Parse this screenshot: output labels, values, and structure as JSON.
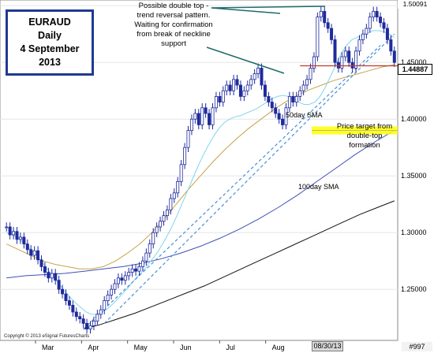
{
  "header": {
    "title_lines": [
      "EURAUD",
      "Daily",
      "4 September",
      "2013"
    ]
  },
  "annotations": {
    "double_top": [
      "Possible double top -",
      "trend reversal pattern.",
      "Waiting for confirmation",
      "from  break of neckline",
      "support"
    ],
    "sma50": "50day SMA",
    "sma100": "100day SMA",
    "target": [
      "Price target from",
      "double-top",
      "formation"
    ]
  },
  "price_tags": {
    "current": "1.44887",
    "top_partial": "1.50091"
  },
  "footer": {
    "copyright": "Copyright © 2013 eSignal FuturesCharts",
    "date_box": "08/30/13",
    "counter": "#997"
  },
  "colors": {
    "up_candle": "#ffffff",
    "down_candle": "#1e2a9c",
    "sma_short": "#7fd6ee",
    "sma50": "#c8a24a",
    "sma100": "#3e4fb5",
    "sma200": "#111111",
    "neckline": "#c0392b",
    "trendline": "#4a90d9",
    "target_highlight": "#ffff00",
    "arrow": "#1f6b6b"
  },
  "chart_data": {
    "type": "candlestick",
    "symbol": "EURAUD",
    "timeframe": "Daily",
    "ylim": [
      1.205,
      1.505
    ],
    "y_ticks": [
      1.25,
      1.3,
      1.35,
      1.4,
      1.45,
      1.5
    ],
    "y_tick_labels": [
      "1.25000",
      "1.30000",
      "1.35000",
      "1.40000",
      "1.45000",
      "1.50000"
    ],
    "x_labels": [
      "Mar",
      "Apr",
      "May",
      "Jun",
      "Jul",
      "Aug"
    ],
    "close_series": [
      1.305,
      1.298,
      1.301,
      1.294,
      1.296,
      1.29,
      1.285,
      1.28,
      1.284,
      1.276,
      1.27,
      1.265,
      1.26,
      1.264,
      1.258,
      1.25,
      1.246,
      1.24,
      1.236,
      1.23,
      1.226,
      1.224,
      1.22,
      1.215,
      1.218,
      1.222,
      1.228,
      1.232,
      1.24,
      1.245,
      1.25,
      1.255,
      1.26,
      1.258,
      1.262,
      1.265,
      1.268,
      1.266,
      1.27,
      1.275,
      1.282,
      1.29,
      1.3,
      1.305,
      1.31,
      1.315,
      1.32,
      1.33,
      1.335,
      1.345,
      1.36,
      1.375,
      1.39,
      1.4,
      1.405,
      1.395,
      1.41,
      1.405,
      1.395,
      1.41,
      1.42,
      1.415,
      1.425,
      1.43,
      1.425,
      1.435,
      1.43,
      1.42,
      1.425,
      1.43,
      1.435,
      1.44,
      1.445,
      1.43,
      1.42,
      1.415,
      1.41,
      1.405,
      1.4,
      1.395,
      1.41,
      1.42,
      1.415,
      1.42,
      1.425,
      1.43,
      1.435,
      1.445,
      1.455,
      1.49,
      1.495,
      1.485,
      1.48,
      1.47,
      1.45,
      1.445,
      1.455,
      1.46,
      1.45,
      1.445,
      1.46,
      1.47,
      1.475,
      1.48,
      1.49,
      1.495,
      1.49,
      1.485,
      1.48,
      1.47,
      1.46,
      1.45
    ],
    "sma_short": [
      1.3,
      1.298,
      1.296,
      1.292,
      1.288,
      1.283,
      1.278,
      1.272,
      1.266,
      1.26,
      1.254,
      1.248,
      1.243,
      1.238,
      1.234,
      1.23,
      1.228,
      1.228,
      1.23,
      1.233,
      1.237,
      1.242,
      1.247,
      1.252,
      1.258,
      1.263,
      1.268,
      1.274,
      1.28,
      1.287,
      1.295,
      1.304,
      1.314,
      1.325,
      1.336,
      1.347,
      1.358,
      1.368,
      1.377,
      1.385,
      1.392,
      1.397,
      1.4,
      1.402,
      1.403,
      1.405,
      1.407,
      1.409,
      1.412,
      1.415,
      1.418,
      1.42,
      1.421,
      1.42,
      1.418,
      1.415,
      1.413,
      1.413,
      1.415,
      1.42,
      1.428,
      1.438,
      1.448,
      1.458,
      1.465,
      1.47,
      1.472,
      1.474,
      1.476,
      1.478,
      1.478,
      1.477,
      1.475,
      1.472
    ],
    "sma50": [
      1.29,
      1.285,
      1.28,
      1.275,
      1.272,
      1.27,
      1.268,
      1.268,
      1.27,
      1.275,
      1.282,
      1.29,
      1.3,
      1.312,
      1.325,
      1.338,
      1.35,
      1.362,
      1.373,
      1.383,
      1.392,
      1.4,
      1.408,
      1.415,
      1.421,
      1.426,
      1.43,
      1.434,
      1.437,
      1.44,
      1.443,
      1.446,
      1.448
    ],
    "sma100": [
      1.26,
      1.262,
      1.263,
      1.264,
      1.266,
      1.268,
      1.27,
      1.273,
      1.277,
      1.282,
      1.288,
      1.295,
      1.303,
      1.312,
      1.322,
      1.333,
      1.345,
      1.357,
      1.369,
      1.38,
      1.39
    ],
    "sma200": [
      1.215,
      1.219,
      1.224,
      1.229,
      1.235,
      1.241,
      1.247,
      1.253,
      1.26,
      1.267,
      1.274,
      1.281,
      1.288,
      1.295,
      1.302,
      1.309,
      1.316,
      1.322,
      1.328
    ],
    "neckline": 1.447,
    "current_price": 1.44887,
    "target_price": 1.39
  }
}
